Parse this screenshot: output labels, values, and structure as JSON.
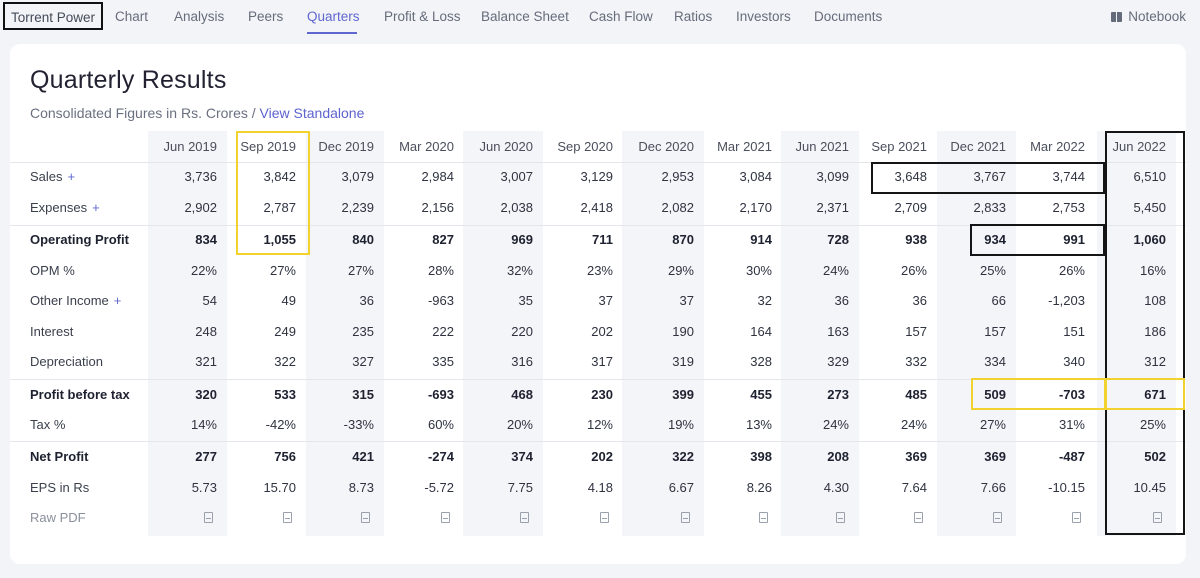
{
  "nav": {
    "company": "Torrent Power",
    "tabs": [
      "Chart",
      "Analysis",
      "Peers",
      "Quarters",
      "Profit & Loss",
      "Balance Sheet",
      "Cash Flow",
      "Ratios",
      "Investors",
      "Documents"
    ],
    "active_tab": "Quarters",
    "notebook": "Notebook"
  },
  "title": "Quarterly Results",
  "subtitle": {
    "text": "Consolidated Figures in Rs. Crores / ",
    "link": "View Standalone"
  },
  "table": {
    "columns": [
      "Jun 2019",
      "Sep 2019",
      "Dec 2019",
      "Mar 2020",
      "Jun 2020",
      "Sep 2020",
      "Dec 2020",
      "Mar 2021",
      "Jun 2021",
      "Sep 2021",
      "Dec 2021",
      "Mar 2022",
      "Jun 2022"
    ],
    "rows": [
      {
        "label": "Sales",
        "expandable": true,
        "bold": false,
        "values": [
          "3,736",
          "3,842",
          "3,079",
          "2,984",
          "3,007",
          "3,129",
          "2,953",
          "3,084",
          "3,099",
          "3,648",
          "3,767",
          "3,744",
          "6,510"
        ]
      },
      {
        "label": "Expenses",
        "expandable": true,
        "bold": false,
        "values": [
          "2,902",
          "2,787",
          "2,239",
          "2,156",
          "2,038",
          "2,418",
          "2,082",
          "2,170",
          "2,371",
          "2,709",
          "2,833",
          "2,753",
          "5,450"
        ]
      },
      {
        "label": "Operating Profit",
        "expandable": false,
        "bold": true,
        "values": [
          "834",
          "1,055",
          "840",
          "827",
          "969",
          "711",
          "870",
          "914",
          "728",
          "938",
          "934",
          "991",
          "1,060"
        ]
      },
      {
        "label": "OPM %",
        "expandable": false,
        "bold": false,
        "values": [
          "22%",
          "27%",
          "27%",
          "28%",
          "32%",
          "23%",
          "29%",
          "30%",
          "24%",
          "26%",
          "25%",
          "26%",
          "16%"
        ]
      },
      {
        "label": "Other Income",
        "expandable": true,
        "bold": false,
        "values": [
          "54",
          "49",
          "36",
          "-963",
          "35",
          "37",
          "37",
          "32",
          "36",
          "36",
          "66",
          "-1,203",
          "108"
        ]
      },
      {
        "label": "Interest",
        "expandable": false,
        "bold": false,
        "values": [
          "248",
          "249",
          "235",
          "222",
          "220",
          "202",
          "190",
          "164",
          "163",
          "157",
          "157",
          "151",
          "186"
        ]
      },
      {
        "label": "Depreciation",
        "expandable": false,
        "bold": false,
        "values": [
          "321",
          "322",
          "327",
          "335",
          "316",
          "317",
          "319",
          "328",
          "329",
          "332",
          "334",
          "340",
          "312"
        ]
      },
      {
        "label": "Profit before tax",
        "expandable": false,
        "bold": true,
        "values": [
          "320",
          "533",
          "315",
          "-693",
          "468",
          "230",
          "399",
          "455",
          "273",
          "485",
          "509",
          "-703",
          "671"
        ]
      },
      {
        "label": "Tax %",
        "expandable": false,
        "bold": false,
        "values": [
          "14%",
          "-42%",
          "-33%",
          "60%",
          "20%",
          "12%",
          "19%",
          "13%",
          "24%",
          "24%",
          "27%",
          "31%",
          "25%"
        ]
      },
      {
        "label": "Net Profit",
        "expandable": false,
        "bold": true,
        "values": [
          "277",
          "756",
          "421",
          "-274",
          "374",
          "202",
          "322",
          "398",
          "208",
          "369",
          "369",
          "-487",
          "502"
        ]
      },
      {
        "label": "EPS in Rs",
        "expandable": false,
        "bold": false,
        "values": [
          "5.73",
          "15.70",
          "8.73",
          "-5.72",
          "7.75",
          "4.18",
          "6.67",
          "8.26",
          "4.30",
          "7.64",
          "7.66",
          "-10.15",
          "10.45"
        ]
      }
    ],
    "raw_pdf_label": "Raw PDF"
  },
  "colors": {
    "accent": "#6066d0",
    "highlight_black": "#151515",
    "highlight_yellow": "#f2d22e"
  }
}
